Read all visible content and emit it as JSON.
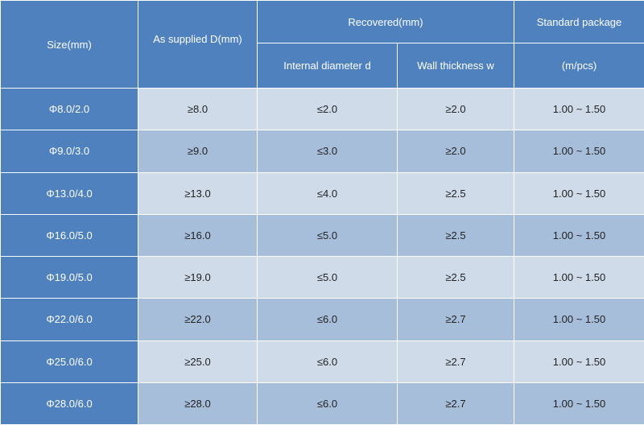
{
  "headers": {
    "size": "Size(mm)",
    "supplied": "As supplied D(mm)",
    "recovered": "Recovered(mm)",
    "internal": "Internal diameter d",
    "wall": "Wall thickness w",
    "package": "Standard package",
    "package_unit": "(m/pcs)"
  },
  "rows": [
    {
      "size": "Φ8.0/2.0",
      "supplied": "≥8.0",
      "internal": "≤2.0",
      "wall": "≥2.0",
      "package": "1.00 ~ 1.50"
    },
    {
      "size": "Φ9.0/3.0",
      "supplied": "≥9.0",
      "internal": "≤3.0",
      "wall": "≥2.0",
      "package": "1.00 ~ 1.50"
    },
    {
      "size": "Φ13.0/4.0",
      "supplied": "≥13.0",
      "internal": "≤4.0",
      "wall": "≥2.5",
      "package": "1.00 ~ 1.50"
    },
    {
      "size": "Φ16.0/5.0",
      "supplied": "≥16.0",
      "internal": "≤5.0",
      "wall": "≥2.5",
      "package": "1.00 ~ 1.50"
    },
    {
      "size": "Φ19.0/5.0",
      "supplied": "≥19.0",
      "internal": "≤5.0",
      "wall": "≥2.5",
      "package": "1.00 ~ 1.50"
    },
    {
      "size": "Φ22.0/6.0",
      "supplied": "≥22.0",
      "internal": "≤6.0",
      "wall": "≥2.7",
      "package": "1.00 ~ 1.50"
    },
    {
      "size": "Φ25.0/6.0",
      "supplied": "≥25.0",
      "internal": "≤6.0",
      "wall": "≥2.7",
      "package": "1.00 ~ 1.50"
    },
    {
      "size": "Φ28.0/6.0",
      "supplied": "≥28.0",
      "internal": "≤6.0",
      "wall": "≥2.7",
      "package": "1.00 ~ 1.50"
    }
  ],
  "colors": {
    "header": "#4e81bd",
    "row_light": "#d0dbea",
    "row_mid": "#a7bedb",
    "header_text": "#ffffff"
  }
}
